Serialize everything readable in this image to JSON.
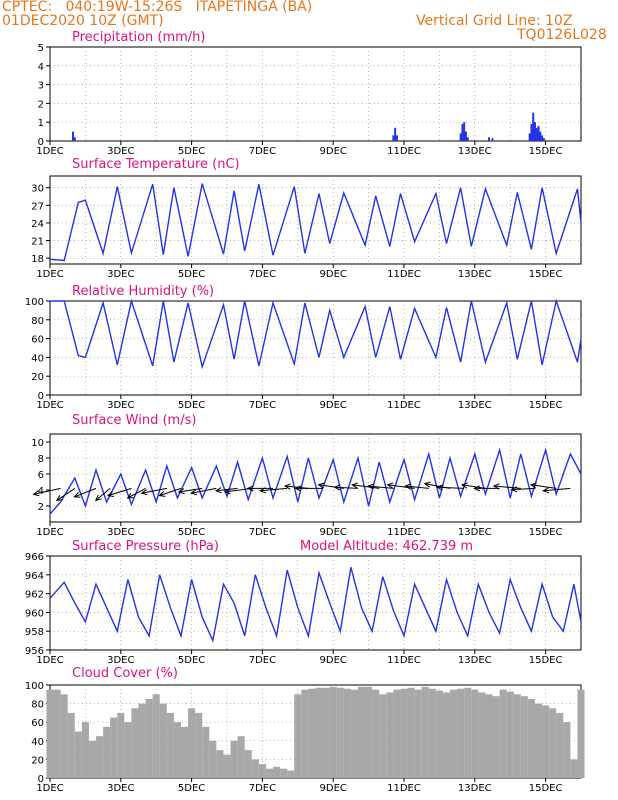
{
  "header": {
    "line1": "CPTEC:   040:19W-15:26S   ITAPETINGA (BA)",
    "line2": "01DEC2020 10Z (GMT)",
    "right1": "Vertical Grid Line: 10Z",
    "right2": "TQ0126L028"
  },
  "colors": {
    "header": "#e8761c",
    "title": "#e0117f",
    "series": "#2433e6",
    "cloud": "#a8a8a8",
    "grid": "#888888"
  },
  "x_ticks": [
    "1DEC",
    "3DEC",
    "5DEC",
    "7DEC",
    "9DEC",
    "11DEC",
    "13DEC",
    "15DEC"
  ],
  "x_tick_days": [
    1,
    3,
    5,
    7,
    9,
    11,
    13,
    15
  ],
  "chart_data": [
    {
      "type": "bar",
      "title": "Precipitation (mm/h)",
      "ylim": [
        0,
        5
      ],
      "yticks": [
        "5",
        "4",
        "3",
        "2",
        "1",
        "0"
      ],
      "x": [
        1.65,
        1.7,
        10.7,
        10.75,
        10.8,
        12.6,
        12.65,
        12.7,
        12.75,
        12.8,
        13.4,
        13.5,
        14.55,
        14.6,
        14.65,
        14.7,
        14.75,
        14.8,
        14.85,
        14.9,
        14.95
      ],
      "values": [
        0.5,
        0.2,
        0.3,
        0.7,
        0.3,
        0.4,
        0.9,
        1.0,
        0.5,
        0.2,
        0.2,
        0.15,
        0.4,
        0.9,
        1.5,
        1.0,
        0.7,
        0.8,
        0.5,
        0.3,
        0.15
      ]
    },
    {
      "type": "line",
      "title": "Surface Temperature (nC)",
      "ylim": [
        17,
        32
      ],
      "yticks": [
        "30",
        "27",
        "24",
        "21",
        "18"
      ],
      "x": [
        1.0,
        1.4,
        1.8,
        2.0,
        2.5,
        2.9,
        3.3,
        3.9,
        4.2,
        4.5,
        4.9,
        5.3,
        5.9,
        6.2,
        6.5,
        6.9,
        7.3,
        7.9,
        8.2,
        8.6,
        8.9,
        9.3,
        9.9,
        10.2,
        10.6,
        10.9,
        11.3,
        11.9,
        12.2,
        12.6,
        12.9,
        13.3,
        13.9,
        14.2,
        14.6,
        14.9,
        15.3,
        15.9,
        16.0
      ],
      "y": [
        17.8,
        17.6,
        27.5,
        27.9,
        18.8,
        30.2,
        18.9,
        30.6,
        18.6,
        30.0,
        18.3,
        30.7,
        18.7,
        29.5,
        19.2,
        30.6,
        18.5,
        30.2,
        18.8,
        29.0,
        20.5,
        29.1,
        20.2,
        28.6,
        20.0,
        29.0,
        20.8,
        29.0,
        20.5,
        30.0,
        20.0,
        29.8,
        20.2,
        29.2,
        19.5,
        30.0,
        18.8,
        29.8,
        24.0
      ]
    },
    {
      "type": "line",
      "title": "Relative Humidity (%)",
      "ylim": [
        0,
        100
      ],
      "yticks": [
        "100",
        "80",
        "60",
        "40",
        "20",
        "0"
      ],
      "x": [
        1.0,
        1.4,
        1.8,
        2.0,
        2.5,
        2.9,
        3.3,
        3.9,
        4.2,
        4.5,
        4.9,
        5.3,
        5.9,
        6.2,
        6.5,
        6.9,
        7.3,
        7.9,
        8.2,
        8.6,
        8.9,
        9.3,
        9.9,
        10.2,
        10.6,
        10.9,
        11.3,
        11.9,
        12.2,
        12.6,
        12.9,
        13.3,
        13.9,
        14.2,
        14.6,
        14.9,
        15.3,
        15.9,
        16.0
      ],
      "y": [
        100,
        100,
        42,
        40,
        98,
        32,
        100,
        31,
        100,
        35,
        98,
        30,
        96,
        38,
        100,
        31,
        98,
        33,
        98,
        40,
        90,
        40,
        94,
        40,
        94,
        38,
        92,
        40,
        93,
        35,
        100,
        35,
        98,
        38,
        100,
        32,
        100,
        35,
        60
      ]
    },
    {
      "type": "line",
      "title": "Surface Wind (m/s)",
      "ylim": [
        0,
        11
      ],
      "yticks": [
        "10",
        "8",
        "6",
        "4",
        "2"
      ],
      "x": [
        1.0,
        1.3,
        1.7,
        2.0,
        2.3,
        2.6,
        3.0,
        3.3,
        3.7,
        4.0,
        4.3,
        4.6,
        5.0,
        5.3,
        5.7,
        6.0,
        6.3,
        6.6,
        7.0,
        7.3,
        7.7,
        8.0,
        8.3,
        8.6,
        9.0,
        9.3,
        9.7,
        10.0,
        10.3,
        10.6,
        11.0,
        11.3,
        11.7,
        12.0,
        12.3,
        12.6,
        13.0,
        13.3,
        13.7,
        14.0,
        14.3,
        14.6,
        15.0,
        15.3,
        15.7,
        16.0
      ],
      "y": [
        1.0,
        2.5,
        5.5,
        2.0,
        6.5,
        2.5,
        6.0,
        2.2,
        6.5,
        2.5,
        7.0,
        3.0,
        6.8,
        3.0,
        7.0,
        3.2,
        7.5,
        2.8,
        8.0,
        3.0,
        8.2,
        2.5,
        8.0,
        3.0,
        7.8,
        2.5,
        8.0,
        2.0,
        7.5,
        2.5,
        7.8,
        2.8,
        8.5,
        3.0,
        8.0,
        3.2,
        8.5,
        3.5,
        9.0,
        3.0,
        8.5,
        3.2,
        9.0,
        3.5,
        8.5,
        6.0
      ],
      "vectors_x": [
        1.3,
        1.7,
        2.3,
        2.7,
        3.3,
        3.7,
        4.3,
        4.7,
        5.3,
        5.7,
        6.3,
        6.7,
        7.3,
        7.7,
        8.3,
        8.7,
        9.3,
        9.7,
        10.3,
        10.7,
        11.3,
        11.7,
        12.3,
        12.7,
        13.3,
        13.7,
        14.3,
        14.7,
        15.3,
        15.7
      ],
      "vectors_u": [
        -1.5,
        -1.0,
        -1.2,
        -0.8,
        -1.3,
        -1.0,
        -1.4,
        -1.2,
        -1.3,
        -1.4,
        -1.2,
        -1.5,
        -1.4,
        -1.5,
        -1.3,
        -1.5,
        -1.4,
        -1.3,
        -1.5,
        -1.4,
        -1.5,
        -1.3,
        -1.4,
        -1.5,
        -1.3,
        -1.4,
        -1.5,
        -1.3,
        -1.4,
        -1.5
      ],
      "vectors_v": [
        -0.5,
        -1.0,
        -0.7,
        -1.0,
        -0.6,
        -0.8,
        -0.4,
        -0.6,
        -0.3,
        -0.4,
        -0.2,
        -0.3,
        0.0,
        -0.2,
        0.2,
        0.0,
        0.3,
        0.1,
        0.3,
        0.2,
        0.3,
        0.2,
        0.4,
        0.1,
        0.3,
        0.0,
        0.2,
        -0.1,
        0.3,
        -0.2
      ]
    },
    {
      "type": "line",
      "title": "Surface Pressure (hPa)",
      "subtitle": "Model Altitude: 462.739 m",
      "ylim": [
        956,
        966
      ],
      "yticks": [
        "966",
        "964",
        "962",
        "960",
        "958",
        "956"
      ],
      "x": [
        1.0,
        1.4,
        1.7,
        2.0,
        2.3,
        2.6,
        2.9,
        3.2,
        3.5,
        3.8,
        4.1,
        4.4,
        4.7,
        5.0,
        5.3,
        5.6,
        5.9,
        6.2,
        6.5,
        6.8,
        7.1,
        7.4,
        7.7,
        8.0,
        8.3,
        8.6,
        8.9,
        9.2,
        9.5,
        9.8,
        10.1,
        10.4,
        10.7,
        11.0,
        11.3,
        11.6,
        11.9,
        12.2,
        12.5,
        12.8,
        13.1,
        13.4,
        13.7,
        14.0,
        14.3,
        14.6,
        14.9,
        15.2,
        15.5,
        15.8,
        16.0
      ],
      "y": [
        961.5,
        963.2,
        961.0,
        959.0,
        963.0,
        960.5,
        958.0,
        963.5,
        959.5,
        957.5,
        964.0,
        960.5,
        957.5,
        963.5,
        959.5,
        957.0,
        963.0,
        961.0,
        957.5,
        964.0,
        960.5,
        957.5,
        964.5,
        960.5,
        957.5,
        964.2,
        961.0,
        958.0,
        964.8,
        960.5,
        958.0,
        963.8,
        960.2,
        957.5,
        963.0,
        960.5,
        958.0,
        963.5,
        960.0,
        957.5,
        963.0,
        960.0,
        957.8,
        963.5,
        960.5,
        958.0,
        963.0,
        959.5,
        958.0,
        963.0,
        959.0
      ]
    },
    {
      "type": "bar",
      "title": "Cloud Cover (%)",
      "ylim": [
        0,
        100
      ],
      "yticks": [
        "100",
        "80",
        "60",
        "40",
        "20",
        "0"
      ],
      "x": [
        1.0,
        1.2,
        1.4,
        1.6,
        1.8,
        2.0,
        2.2,
        2.4,
        2.6,
        2.8,
        3.0,
        3.2,
        3.4,
        3.6,
        3.8,
        4.0,
        4.2,
        4.4,
        4.6,
        4.8,
        5.0,
        5.2,
        5.4,
        5.6,
        5.8,
        6.0,
        6.2,
        6.4,
        6.6,
        6.8,
        7.0,
        7.2,
        7.4,
        7.6,
        7.8,
        8.0,
        8.2,
        8.4,
        8.6,
        8.8,
        9.0,
        9.2,
        9.4,
        9.6,
        9.8,
        10.0,
        10.2,
        10.4,
        10.6,
        10.8,
        11.0,
        11.2,
        11.4,
        11.6,
        11.8,
        12.0,
        12.2,
        12.4,
        12.6,
        12.8,
        13.0,
        13.2,
        13.4,
        13.6,
        13.8,
        14.0,
        14.2,
        14.4,
        14.6,
        14.8,
        15.0,
        15.2,
        15.4,
        15.6,
        15.8,
        16.0
      ],
      "values": [
        95,
        95,
        90,
        70,
        50,
        60,
        40,
        45,
        55,
        65,
        70,
        60,
        75,
        80,
        85,
        90,
        80,
        70,
        60,
        55,
        75,
        70,
        55,
        40,
        30,
        25,
        40,
        45,
        30,
        20,
        15,
        10,
        12,
        10,
        8,
        90,
        95,
        96,
        97,
        97,
        98,
        97,
        96,
        95,
        98,
        98,
        95,
        90,
        92,
        95,
        96,
        97,
        95,
        98,
        96,
        94,
        92,
        95,
        96,
        97,
        95,
        92,
        90,
        88,
        95,
        93,
        90,
        88,
        85,
        80,
        78,
        75,
        70,
        60,
        20,
        95
      ]
    }
  ]
}
